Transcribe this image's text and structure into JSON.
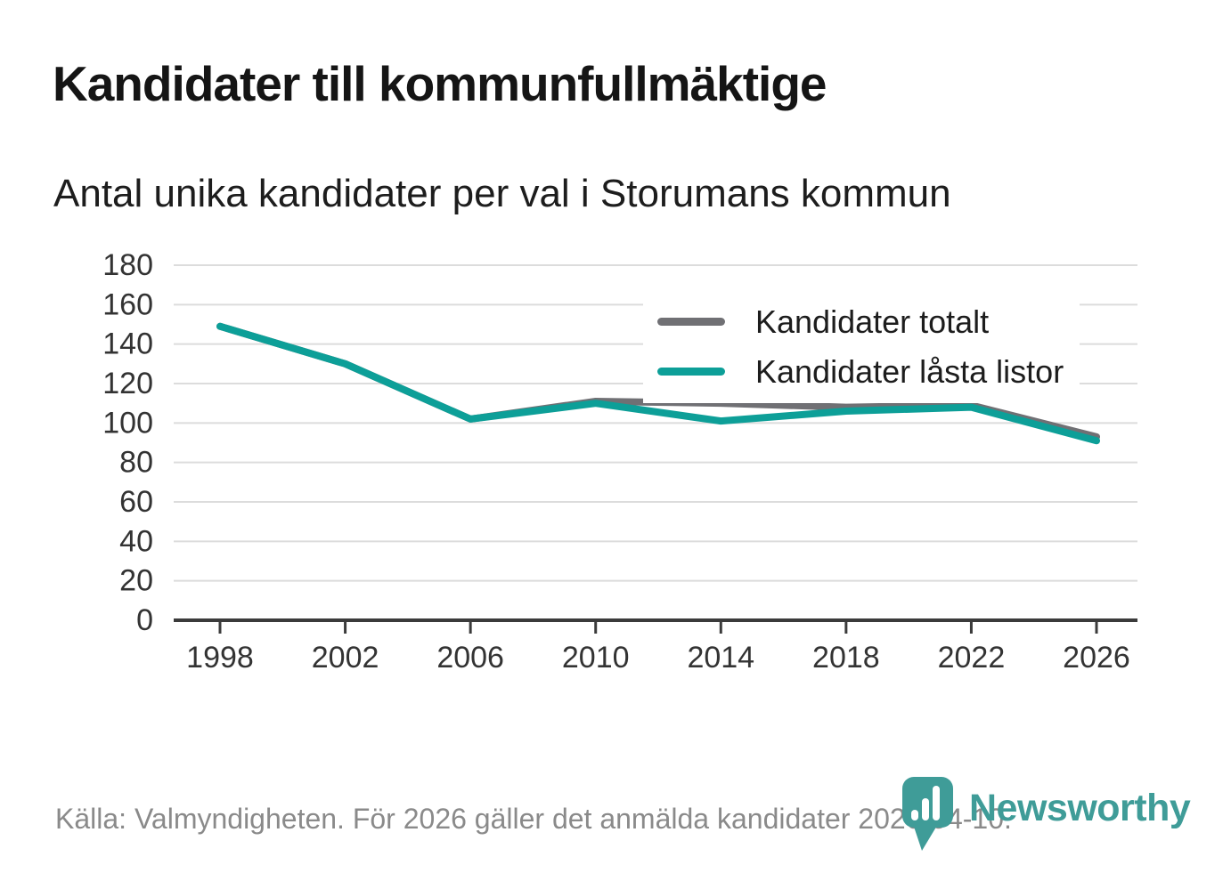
{
  "header": {
    "title": "Kandidater till kommunfullmäktige",
    "subtitle": "Antal unika kandidater per val i Storumans kommun"
  },
  "footer": {
    "source_text": "Källa: Valmyndigheten. För 2026 gäller det anmälda kandidater 2026-04-10.",
    "brand": "Newsworthy"
  },
  "colors": {
    "series_total_gray": "#707074",
    "series_locked_teal": "#0D9F98",
    "grid": "#dcdcdc",
    "axis": "#3b3b3b",
    "tick_label": "#333333",
    "logo_teal": "#3F9C98",
    "muted_text": "#8a8a8a"
  },
  "chart_data": {
    "type": "line",
    "x": [
      1998,
      2002,
      2006,
      2010,
      2014,
      2018,
      2022,
      2026
    ],
    "series": [
      {
        "name": "Kandidater totalt",
        "color": "#707074",
        "values": [
          149,
          130,
          102,
          111,
          110,
          108,
          109,
          93
        ]
      },
      {
        "name": "Kandidater låsta listor",
        "color": "#0D9F98",
        "values": [
          149,
          130,
          102,
          110,
          101,
          106,
          108,
          91
        ]
      }
    ],
    "title": "Kandidater till kommunfullmäktige",
    "subtitle": "Antal unika kandidater per val i Storumans kommun",
    "xlabel": "",
    "ylabel": "",
    "ylim": [
      0,
      180
    ],
    "yticks": [
      0,
      20,
      40,
      60,
      80,
      100,
      120,
      140,
      160,
      180
    ],
    "grid": true,
    "legend_position": "top-right"
  }
}
